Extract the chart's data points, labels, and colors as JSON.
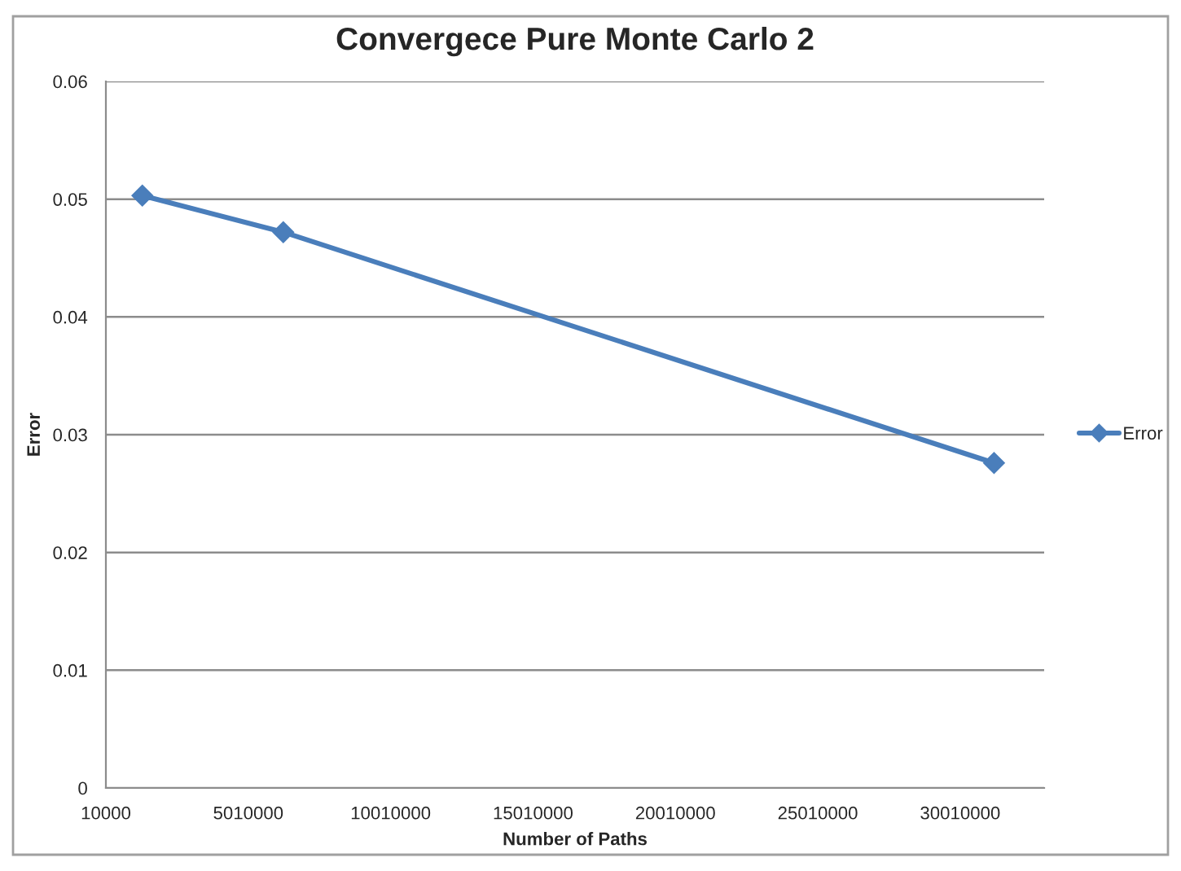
{
  "chart_data": {
    "type": "line",
    "title": "Convergece Pure Monte Carlo 2",
    "xlabel": "Number of Paths",
    "ylabel": "Error",
    "series": [
      {
        "name": "Error",
        "color": "#4a7ebb",
        "x": [
          1290000,
          6240000,
          31200000
        ],
        "values": [
          0.0503,
          0.0472,
          0.0276
        ]
      }
    ],
    "xlim": [
      10000,
      32960000
    ],
    "xticks": [
      10000,
      5010000,
      10010000,
      15010000,
      20010000,
      25010000,
      30010000
    ],
    "ylim": [
      0,
      0.06
    ],
    "yticks": [
      0,
      0.01,
      0.02,
      0.03,
      0.04,
      0.05,
      0.06
    ],
    "grid": "y",
    "legend": "right",
    "marker": "diamond",
    "line_style": "solid"
  }
}
